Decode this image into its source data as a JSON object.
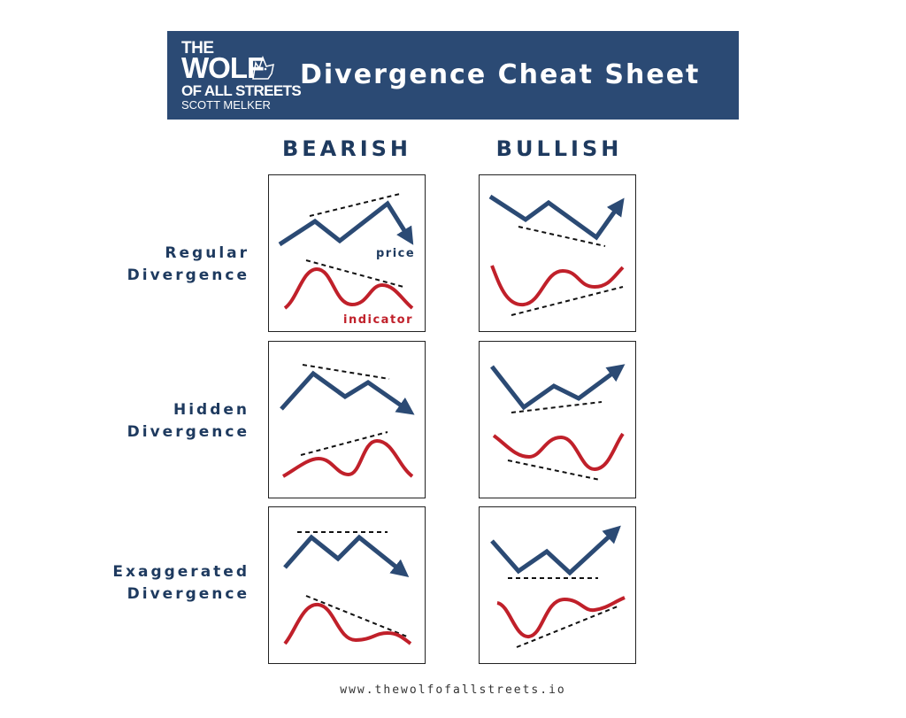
{
  "header": {
    "logo": {
      "line1": "THE",
      "line2": "WOLF",
      "line3": "OF ALL STREETS",
      "line4": "SCOTT MELKER"
    },
    "title": "Divergence Cheat Sheet"
  },
  "columns": [
    "BEARISH",
    "BULLISH"
  ],
  "rows": [
    {
      "label_line1": "Regular",
      "label_line2": "Divergence"
    },
    {
      "label_line1": "Hidden",
      "label_line2": "Divergence"
    },
    {
      "label_line1": "Exaggerated",
      "label_line2": "Divergence"
    }
  ],
  "annotations": {
    "price": "price",
    "indicator": "indicator"
  },
  "colors": {
    "banner": "#2b4a74",
    "price_line": "#2b4a74",
    "indicator_line": "#c0202a",
    "text_dark": "#1e3a5f"
  },
  "footer": "www.thewolfofallstreets.io"
}
